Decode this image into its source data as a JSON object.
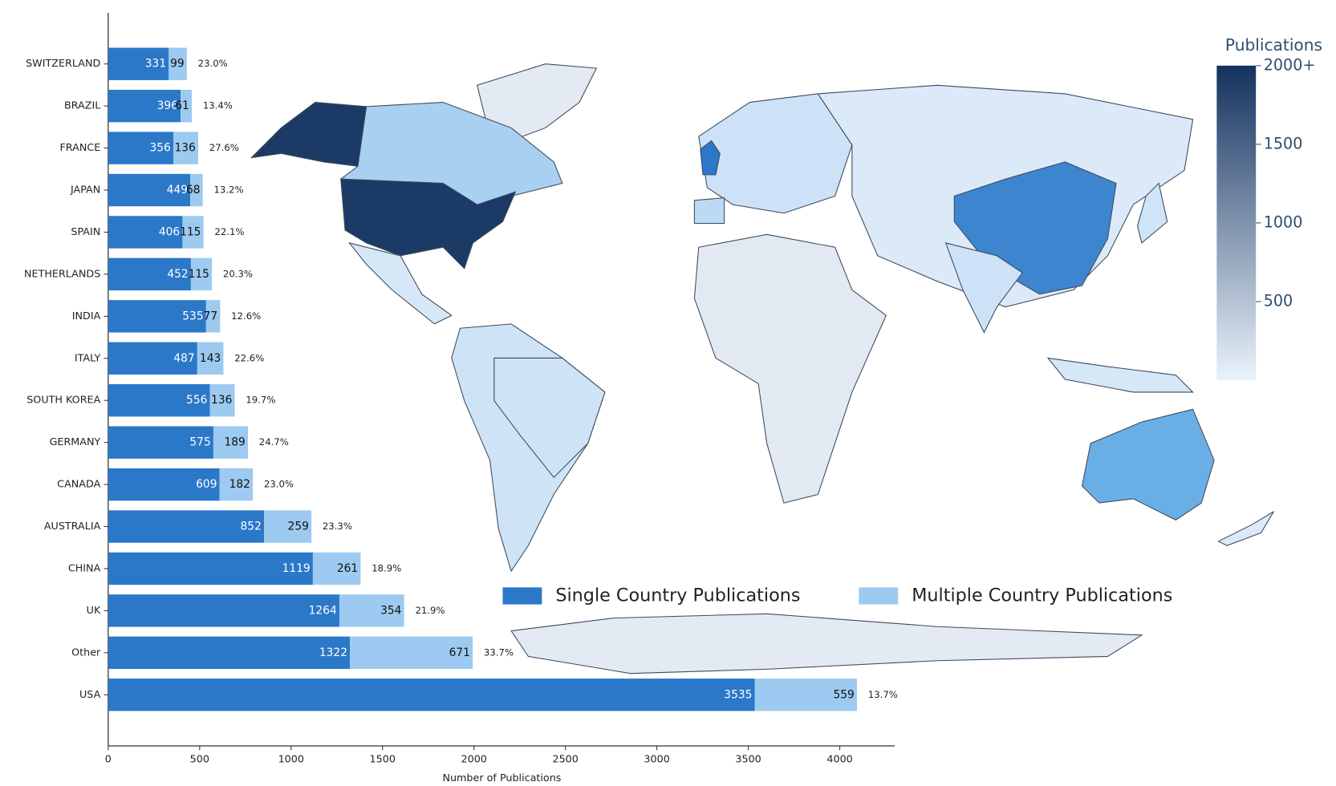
{
  "chart_data": {
    "type": "bar",
    "orientation": "horizontal",
    "stacked": true,
    "x_label": "Number of Publications",
    "categories": [
      "SWITZERLAND",
      "BRAZIL",
      "FRANCE",
      "JAPAN",
      "SPAIN",
      "NETHERLANDS",
      "INDIA",
      "ITALY",
      "SOUTH KOREA",
      "GERMANY",
      "CANADA",
      "AUSTRALIA",
      "CHINA",
      "UK",
      "Other",
      "USA"
    ],
    "series": [
      {
        "name": "Single Country Publications",
        "color": "#2b78c8",
        "values": [
          331,
          396,
          356,
          449,
          406,
          452,
          535,
          487,
          556,
          575,
          609,
          852,
          1119,
          1264,
          1322,
          3535
        ]
      },
      {
        "name": "Multiple Country Publications",
        "color": "#9ccaf0",
        "values": [
          99,
          61,
          136,
          68,
          115,
          115,
          77,
          143,
          136,
          189,
          182,
          259,
          261,
          354,
          671,
          559
        ]
      }
    ],
    "percent_labels": [
      "23.0%",
      "13.4%",
      "27.6%",
      "13.2%",
      "22.1%",
      "20.3%",
      "12.6%",
      "22.6%",
      "19.7%",
      "24.7%",
      "23.0%",
      "23.3%",
      "18.9%",
      "21.9%",
      "33.7%",
      "13.7%"
    ],
    "xlim": [
      0,
      4300
    ],
    "xticks": [
      0,
      500,
      1000,
      1500,
      2000,
      2500,
      3000,
      3500,
      4000
    ],
    "colorbar": {
      "title": "Publications",
      "lim": [
        0,
        2000
      ],
      "ticks": [
        500,
        1000,
        1500,
        {
          "value": 2000,
          "label": "2000+"
        }
      ],
      "colors": [
        "#eaf3fb",
        "#14325e"
      ]
    }
  }
}
